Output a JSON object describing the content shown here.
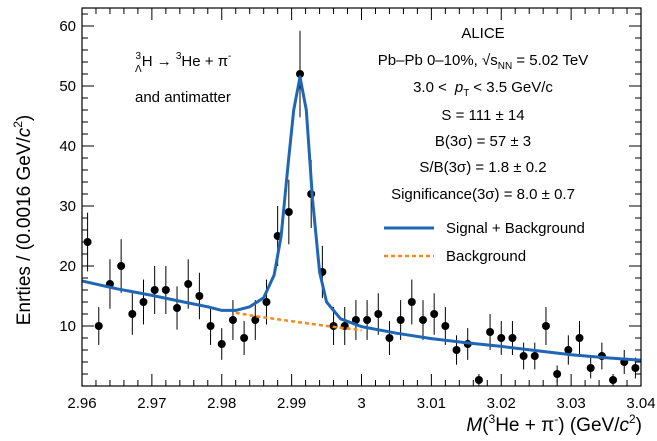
{
  "chart_data": {
    "type": "scatter",
    "experiment": "ALICE",
    "collision": "Pb–Pb 0–10%, √s",
    "collision_sub": "NN",
    "energy": " = 5.02 TeV",
    "pt_range_lo": "3.0 <",
    "pt_symbol": "p",
    "pt_sub": "T",
    "pt_range_hi": "< 3.5 GeV/c",
    "decay_label": "ΛH → ³He + π⁻",
    "decay_pre": "3",
    "decay_lambda": "Λ",
    "decay_h": "H → ",
    "decay_he_sup": "3",
    "decay_he": "He + π",
    "decay_pi_sup": "-",
    "antimatter_label": "and antimatter",
    "stats": [
      "S = 111 ± 14",
      "B(3σ) = 57 ± 3",
      "S/B(3σ) = 1.8 ± 0.2",
      "Significance(3σ) = 8.0 ± 0.7"
    ],
    "legend": [
      {
        "label": "Signal + Background",
        "color": "#1f66b5",
        "style": "solid"
      },
      {
        "label": "Background",
        "color": "#f28a1e",
        "style": "dashed"
      }
    ],
    "ylabel": "Entries / (0.0016 GeV/c²)",
    "ylabel_main": "Enrties / (0.0016 GeV/",
    "ylabel_c": "c",
    "ylabel_sup": "2",
    "ylabel_end": ")",
    "xlabel_m": "M",
    "xlabel_open": "(",
    "xlabel_he_sup": "3",
    "xlabel_he": "He + π",
    "xlabel_pi_sup": "-",
    "xlabel_units": ") (GeV/",
    "xlabel_c": "c",
    "xlabel_c_sup": "2",
    "xlabel_end": ")",
    "xlim": [
      2.96,
      3.04
    ],
    "ylim": [
      0,
      63
    ],
    "x_ticks": [
      2.96,
      2.97,
      2.98,
      2.99,
      3,
      3.01,
      3.02,
      3.03,
      3.04
    ],
    "x_tick_labels": [
      "2.96",
      "2.97",
      "2.98",
      "2.99",
      "3",
      "3.01",
      "3.02",
      "3.03",
      "3.04"
    ],
    "y_ticks": [
      10,
      20,
      30,
      40,
      50,
      60
    ],
    "y_tick_labels": [
      "10",
      "20",
      "30",
      "40",
      "50",
      "60"
    ],
    "points": [
      {
        "x": 2.9608,
        "y": 24
      },
      {
        "x": 2.9624,
        "y": 10
      },
      {
        "x": 2.964,
        "y": 17
      },
      {
        "x": 2.9656,
        "y": 20
      },
      {
        "x": 2.9672,
        "y": 12
      },
      {
        "x": 2.9688,
        "y": 14
      },
      {
        "x": 2.9704,
        "y": 16
      },
      {
        "x": 2.972,
        "y": 16
      },
      {
        "x": 2.9736,
        "y": 13
      },
      {
        "x": 2.9752,
        "y": 17
      },
      {
        "x": 2.9768,
        "y": 15
      },
      {
        "x": 2.9784,
        "y": 10
      },
      {
        "x": 2.98,
        "y": 7
      },
      {
        "x": 2.9816,
        "y": 11
      },
      {
        "x": 2.9832,
        "y": 8
      },
      {
        "x": 2.9848,
        "y": 11
      },
      {
        "x": 2.9864,
        "y": 14
      },
      {
        "x": 2.988,
        "y": 25
      },
      {
        "x": 2.9896,
        "y": 29
      },
      {
        "x": 2.9912,
        "y": 52
      },
      {
        "x": 2.9928,
        "y": 32
      },
      {
        "x": 2.9944,
        "y": 19
      },
      {
        "x": 2.996,
        "y": 10
      },
      {
        "x": 2.9976,
        "y": 10
      },
      {
        "x": 2.9992,
        "y": 11
      },
      {
        "x": 3.0008,
        "y": 11
      },
      {
        "x": 3.0024,
        "y": 12
      },
      {
        "x": 3.004,
        "y": 8
      },
      {
        "x": 3.0056,
        "y": 11
      },
      {
        "x": 3.0072,
        "y": 14
      },
      {
        "x": 3.0088,
        "y": 11
      },
      {
        "x": 3.0104,
        "y": 12
      },
      {
        "x": 3.012,
        "y": 10
      },
      {
        "x": 3.0136,
        "y": 6
      },
      {
        "x": 3.0152,
        "y": 7
      },
      {
        "x": 3.0168,
        "y": 1
      },
      {
        "x": 3.0184,
        "y": 9
      },
      {
        "x": 3.02,
        "y": 8
      },
      {
        "x": 3.0216,
        "y": 8
      },
      {
        "x": 3.0232,
        "y": 5
      },
      {
        "x": 3.0248,
        "y": 5
      },
      {
        "x": 3.0264,
        "y": 10
      },
      {
        "x": 3.028,
        "y": 2
      },
      {
        "x": 3.0296,
        "y": 6
      },
      {
        "x": 3.0312,
        "y": 8
      },
      {
        "x": 3.0328,
        "y": 3
      },
      {
        "x": 3.0344,
        "y": 5
      },
      {
        "x": 3.036,
        "y": 1
      },
      {
        "x": 3.0376,
        "y": 4
      },
      {
        "x": 3.0392,
        "y": 3
      }
    ],
    "fit_signal_background": {
      "x": [
        2.96,
        2.965,
        2.97,
        2.975,
        2.978,
        2.98,
        2.982,
        2.984,
        2.986,
        2.9875,
        2.9885,
        2.9895,
        2.9903,
        2.9912,
        2.9921,
        2.993,
        2.994,
        2.995,
        2.997,
        3.0,
        3.005,
        3.01,
        3.015,
        3.02,
        3.025,
        3.03,
        3.035,
        3.04
      ],
      "y": [
        17.5,
        16.2,
        15.1,
        13.9,
        13.2,
        12.6,
        12.6,
        13.2,
        14.7,
        18.5,
        25.0,
        37.0,
        46.0,
        51.5,
        46.0,
        31.0,
        19.0,
        14.0,
        11.2,
        9.9,
        8.8,
        7.9,
        7.2,
        6.6,
        5.9,
        5.2,
        4.7,
        4.3
      ]
    },
    "fit_background": {
      "x": [
        2.982,
        2.985,
        2.99,
        2.995,
        3.0
      ],
      "y": [
        12.2,
        11.6,
        10.8,
        10.0,
        9.3
      ]
    }
  }
}
